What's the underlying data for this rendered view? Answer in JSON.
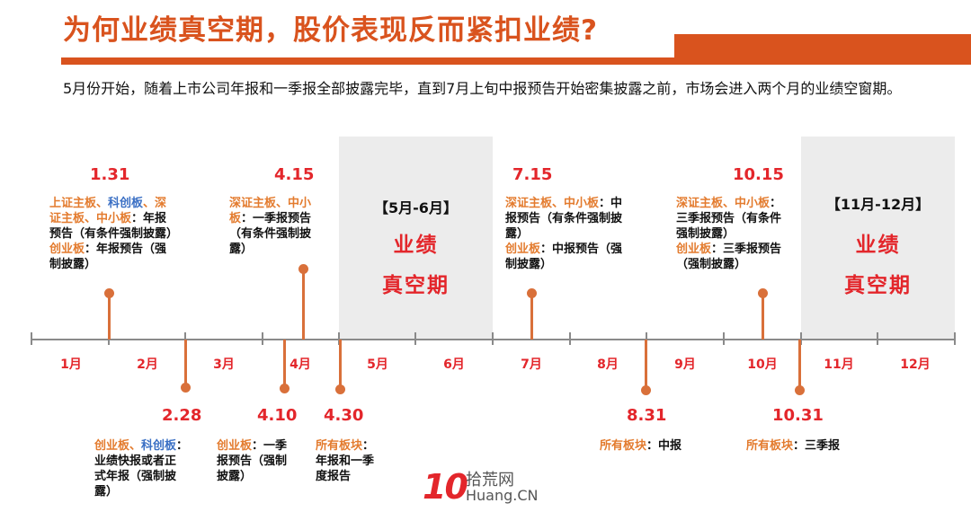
{
  "header": {
    "title": "为何业绩真空期，股价表现反而紧扣业绩?",
    "intro": "5月份开始，随着上市公司年报和一季报全部披露完毕，直到7月上旬中报预告开始密集披露之前，市场会进入两个月的业绩空窗期。"
  },
  "shaded_periods": [
    {
      "head": "【5月-6月】",
      "line1": "业绩",
      "line2": "真空期"
    },
    {
      "head": "【11月-12月】",
      "line1": "业绩",
      "line2": "真空期"
    }
  ],
  "months": [
    "1月",
    "2月",
    "3月",
    "4月",
    "5月",
    "6月",
    "7月",
    "8月",
    "9月",
    "10月",
    "11月",
    "12月"
  ],
  "events_above": [
    {
      "date": "1.31",
      "desc": [
        [
          {
            "t": "上证主板、",
            "c": "o"
          },
          {
            "t": "科创板",
            "c": "b"
          },
          {
            "t": "、深",
            "c": "o"
          }
        ],
        [
          {
            "t": "证主板、中小板",
            "c": "o"
          },
          {
            "t": "：年报",
            "c": "k"
          }
        ],
        [
          {
            "t": "预告（有条件强制披露）",
            "c": "k"
          }
        ],
        [
          {
            "t": "创业板",
            "c": "o"
          },
          {
            "t": "：年报预告（强",
            "c": "k"
          }
        ],
        [
          {
            "t": "制披露）",
            "c": "k"
          }
        ]
      ]
    },
    {
      "date": "4.15",
      "desc": [
        [
          {
            "t": "深证主板、中小",
            "c": "o"
          }
        ],
        [
          {
            "t": "板",
            "c": "o"
          },
          {
            "t": "：一季报预告",
            "c": "k"
          }
        ],
        [
          {
            "t": "（有条件强制披",
            "c": "k"
          }
        ],
        [
          {
            "t": "露）",
            "c": "k"
          }
        ]
      ]
    },
    {
      "date": "7.15",
      "desc": [
        [
          {
            "t": "深证主板、中小板",
            "c": "o"
          },
          {
            "t": "：中",
            "c": "k"
          }
        ],
        [
          {
            "t": "报预告（有条件强制披",
            "c": "k"
          }
        ],
        [
          {
            "t": "露）",
            "c": "k"
          }
        ],
        [
          {
            "t": "创业板",
            "c": "o"
          },
          {
            "t": "：中报预告（强",
            "c": "k"
          }
        ],
        [
          {
            "t": "制披露）",
            "c": "k"
          }
        ]
      ]
    },
    {
      "date": "10.15",
      "desc": [
        [
          {
            "t": "深证主板、中小板",
            "c": "o"
          },
          {
            "t": "：",
            "c": "k"
          }
        ],
        [
          {
            "t": "三季报预告（有条件",
            "c": "k"
          }
        ],
        [
          {
            "t": "强制披露）",
            "c": "k"
          }
        ],
        [
          {
            "t": "创业板",
            "c": "o"
          },
          {
            "t": "：三季报预告",
            "c": "k"
          }
        ],
        [
          {
            "t": "（强制披露）",
            "c": "k"
          }
        ]
      ]
    }
  ],
  "events_below": [
    {
      "date": "2.28",
      "desc": [
        [
          {
            "t": "创业板、",
            "c": "o"
          },
          {
            "t": "科创板",
            "c": "b"
          },
          {
            "t": "：",
            "c": "k"
          }
        ],
        [
          {
            "t": "业绩快报或者正",
            "c": "k"
          }
        ],
        [
          {
            "t": "式年报（强制披",
            "c": "k"
          }
        ],
        [
          {
            "t": "露）",
            "c": "k"
          }
        ]
      ]
    },
    {
      "date": "4.10",
      "desc": [
        [
          {
            "t": "创业板",
            "c": "o"
          },
          {
            "t": "：一季",
            "c": "k"
          }
        ],
        [
          {
            "t": "报预告（强制",
            "c": "k"
          }
        ],
        [
          {
            "t": "披露）",
            "c": "k"
          }
        ]
      ]
    },
    {
      "date": "4.30",
      "desc": [
        [
          {
            "t": "所有板块",
            "c": "o"
          },
          {
            "t": "：",
            "c": "k"
          }
        ],
        [
          {
            "t": "年报和一季",
            "c": "k"
          }
        ],
        [
          {
            "t": "度报告",
            "c": "k"
          }
        ]
      ]
    },
    {
      "date": "8.31",
      "desc": [
        [
          {
            "t": "所有板块",
            "c": "o"
          },
          {
            "t": "：中报",
            "c": "k"
          }
        ]
      ]
    },
    {
      "date": "10.31",
      "desc": [
        [
          {
            "t": "所有板块",
            "c": "o"
          },
          {
            "t": "：三季报",
            "c": "k"
          }
        ]
      ]
    }
  ],
  "watermark": {
    "mark": "10",
    "cn": "拾荒网",
    "url": "Huang.CN"
  }
}
